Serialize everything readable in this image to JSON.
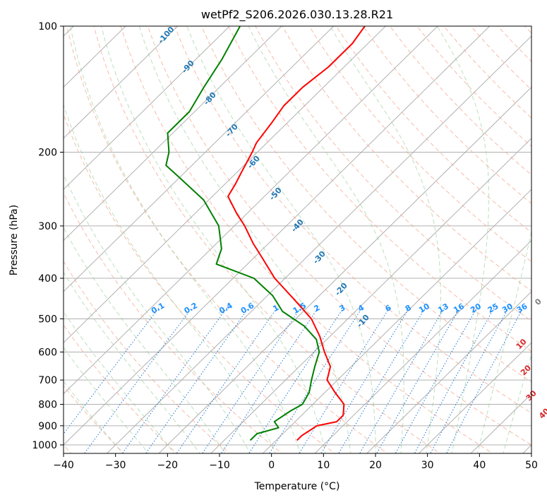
{
  "chart_data": {
    "type": "line",
    "title": "wetPf2_S206.2026.030.13.28.R21",
    "xlabel": "Temperature (°C)",
    "ylabel": "Pressure (hPa)",
    "xlim": [
      -40,
      50
    ],
    "ylim": [
      1050,
      100
    ],
    "x_ticks": [
      "−40",
      "−30",
      "−20",
      "−10",
      "0",
      "10",
      "20",
      "30",
      "40",
      "50"
    ],
    "x_tick_values": [
      -40,
      -30,
      -20,
      -10,
      0,
      10,
      20,
      30,
      40,
      50
    ],
    "y_ticks": [
      "100",
      "200",
      "300",
      "400",
      "500",
      "600",
      "700",
      "800",
      "900",
      "1000"
    ],
    "y_tick_values": [
      100,
      200,
      300,
      400,
      500,
      600,
      700,
      800,
      900,
      1000
    ],
    "isotherm_step": 10,
    "dry_adiabat_labels": [
      {
        "text": "-100",
        "theta": -100
      },
      {
        "text": "-90",
        "theta": -90
      },
      {
        "text": "-80",
        "theta": -80
      },
      {
        "text": "-70",
        "theta": -70
      },
      {
        "text": "-60",
        "theta": -60
      },
      {
        "text": "-50",
        "theta": -50
      },
      {
        "text": "-40",
        "theta": -40
      },
      {
        "text": "-30",
        "theta": -30
      },
      {
        "text": "-20",
        "theta": -20
      },
      {
        "text": "-10",
        "theta": -10
      }
    ],
    "moist_adiabat_labels": [
      {
        "text": "0",
        "t": 24,
        "p": 460
      },
      {
        "text": "10",
        "t": 29,
        "p": 580
      },
      {
        "text": "20",
        "t": 35,
        "p": 670
      },
      {
        "text": "30",
        "t": 41,
        "p": 770
      },
      {
        "text": "40",
        "t": 47,
        "p": 850
      }
    ],
    "mixing_ratio_labels": [
      "0.1",
      "0.2",
      "0.4",
      "0.6",
      "1",
      "1.5",
      "2",
      "3",
      "4",
      "6",
      "8",
      "10",
      "13",
      "16",
      "20",
      "25",
      "30",
      "36"
    ],
    "mixing_ratio_values": [
      0.1,
      0.2,
      0.4,
      0.6,
      1,
      1.5,
      2,
      3,
      4,
      6,
      8,
      10,
      13,
      16,
      20,
      25,
      30,
      36
    ],
    "mixing_ratio_label_pressure": 470,
    "series": [
      {
        "name": "Temperature",
        "color": "#ff0000",
        "points": [
          {
            "p": 100,
            "t": -64
          },
          {
            "p": 110,
            "t": -63
          },
          {
            "p": 125,
            "t": -63
          },
          {
            "p": 140,
            "t": -64
          },
          {
            "p": 155,
            "t": -64
          },
          {
            "p": 170,
            "t": -63
          },
          {
            "p": 190,
            "t": -62
          },
          {
            "p": 200,
            "t": -61
          },
          {
            "p": 225,
            "t": -59
          },
          {
            "p": 238,
            "t": -58
          },
          {
            "p": 255,
            "t": -57
          },
          {
            "p": 280,
            "t": -52
          },
          {
            "p": 300,
            "t": -48
          },
          {
            "p": 330,
            "t": -43
          },
          {
            "p": 360,
            "t": -38
          },
          {
            "p": 400,
            "t": -32
          },
          {
            "p": 450,
            "t": -24
          },
          {
            "p": 500,
            "t": -17
          },
          {
            "p": 550,
            "t": -12
          },
          {
            "p": 600,
            "t": -8
          },
          {
            "p": 650,
            "t": -4
          },
          {
            "p": 700,
            "t": -2
          },
          {
            "p": 750,
            "t": 2
          },
          {
            "p": 800,
            "t": 6
          },
          {
            "p": 850,
            "t": 8
          },
          {
            "p": 880,
            "t": 8
          },
          {
            "p": 900,
            "t": 5
          },
          {
            "p": 950,
            "t": 4
          },
          {
            "p": 975,
            "t": 4
          }
        ]
      },
      {
        "name": "Dewpoint",
        "color": "#008000",
        "points": [
          {
            "p": 100,
            "t": -88
          },
          {
            "p": 120,
            "t": -85
          },
          {
            "p": 140,
            "t": -83
          },
          {
            "p": 160,
            "t": -81
          },
          {
            "p": 180,
            "t": -81
          },
          {
            "p": 200,
            "t": -77
          },
          {
            "p": 215,
            "t": -75
          },
          {
            "p": 230,
            "t": -70
          },
          {
            "p": 260,
            "t": -61
          },
          {
            "p": 300,
            "t": -53
          },
          {
            "p": 340,
            "t": -48
          },
          {
            "p": 370,
            "t": -46
          },
          {
            "p": 400,
            "t": -36
          },
          {
            "p": 440,
            "t": -29
          },
          {
            "p": 480,
            "t": -24
          },
          {
            "p": 520,
            "t": -17
          },
          {
            "p": 560,
            "t": -12
          },
          {
            "p": 600,
            "t": -9
          },
          {
            "p": 650,
            "t": -7
          },
          {
            "p": 700,
            "t": -5
          },
          {
            "p": 750,
            "t": -3
          },
          {
            "p": 800,
            "t": -2
          },
          {
            "p": 830,
            "t": -3
          },
          {
            "p": 880,
            "t": -4
          },
          {
            "p": 910,
            "t": -2
          },
          {
            "p": 940,
            "t": -5
          },
          {
            "p": 975,
            "t": -5
          }
        ]
      }
    ]
  }
}
